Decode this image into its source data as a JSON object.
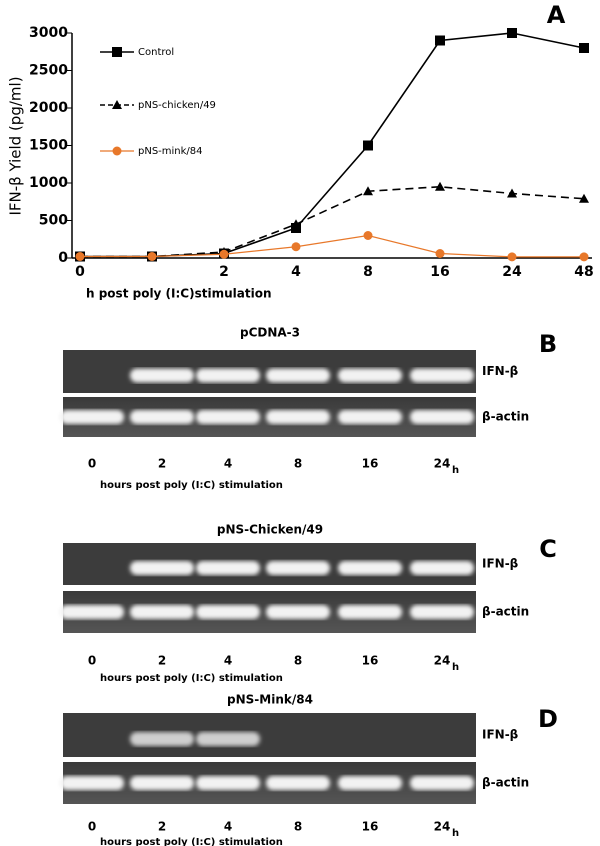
{
  "chart_data": {
    "type": "line",
    "panel": "A",
    "y_label": "IFN-β Yield (pg/ml)",
    "x_label": "h post poly (I:C)stimulation",
    "categories": [
      "0",
      null,
      "2",
      "4",
      "8",
      "16",
      "24",
      "48"
    ],
    "series": [
      {
        "name": "Control",
        "color": "#000000",
        "marker": "square",
        "dash": false,
        "values": [
          20,
          20,
          60,
          400,
          1500,
          2900,
          3000,
          2800
        ]
      },
      {
        "name": "pNS-chicken/49",
        "color": "#000000",
        "marker": "triangle",
        "dash": true,
        "values": [
          20,
          20,
          80,
          450,
          890,
          950,
          860,
          790
        ]
      },
      {
        "name": "pNS-mink/84",
        "color": "#e8782a",
        "marker": "circle",
        "dash": false,
        "values": [
          20,
          20,
          50,
          150,
          300,
          60,
          15,
          15
        ]
      }
    ],
    "ylim": [
      0,
      3000
    ],
    "yticks": [
      0,
      500,
      1000,
      1500,
      2000,
      2500,
      3000
    ],
    "grid": false
  },
  "gels": [
    {
      "letter": "B",
      "title": "pCDNA-3",
      "rows": [
        "IFN-β",
        "β-actin"
      ],
      "lanes": [
        "0",
        "2",
        "4",
        "8",
        "16",
        "24"
      ],
      "unit": "h",
      "caption": "hours post poly (I:C) stimulation",
      "ifn_bands": [
        false,
        true,
        true,
        true,
        true,
        true
      ]
    },
    {
      "letter": "C",
      "title": "pNS-Chicken/49",
      "rows": [
        "IFN-β",
        "β-actin"
      ],
      "lanes": [
        "0",
        "2",
        "4",
        "8",
        "16",
        "24"
      ],
      "unit": "h",
      "caption": "hours post poly (I:C) stimulation",
      "ifn_bands": [
        false,
        true,
        true,
        true,
        true,
        true
      ]
    },
    {
      "letter": "D",
      "title": "pNS-Mink/84",
      "rows": [
        "IFN-β",
        "β-actin"
      ],
      "lanes": [
        "0",
        "2",
        "4",
        "8",
        "16",
        "24"
      ],
      "unit": "h",
      "caption": "hours post poly (I:C) stimulation",
      "ifn_bands": [
        false,
        true,
        true,
        false,
        false,
        false
      ]
    }
  ]
}
